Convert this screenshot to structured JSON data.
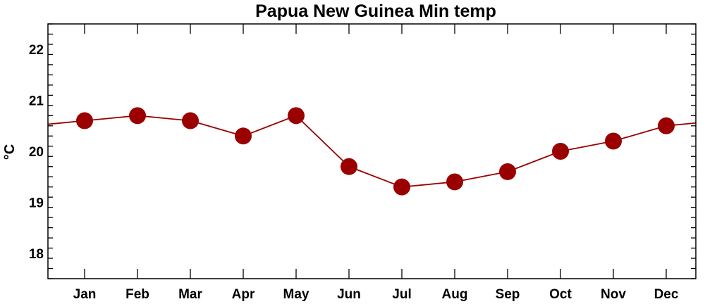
{
  "chart_data": {
    "type": "line",
    "title": "Papua New Guinea Min temp",
    "xlabel": "",
    "ylabel": "°C",
    "categories": [
      "Jan",
      "Feb",
      "Mar",
      "Apr",
      "May",
      "Jun",
      "Jul",
      "Aug",
      "Sep",
      "Oct",
      "Nov",
      "Dec"
    ],
    "series": [
      {
        "values": [
          20.6,
          20.7,
          20.6,
          20.3,
          20.7,
          19.7,
          19.3,
          19.4,
          19.6,
          20.0,
          20.2,
          20.5
        ]
      }
    ],
    "yticks": [
      18,
      19,
      20,
      21,
      22
    ],
    "ylim": [
      17.5,
      22.5
    ],
    "line_wraps_around_edges": true,
    "colors": {
      "line": "#9b0000",
      "marker": "#9b0000"
    },
    "grid": false
  }
}
